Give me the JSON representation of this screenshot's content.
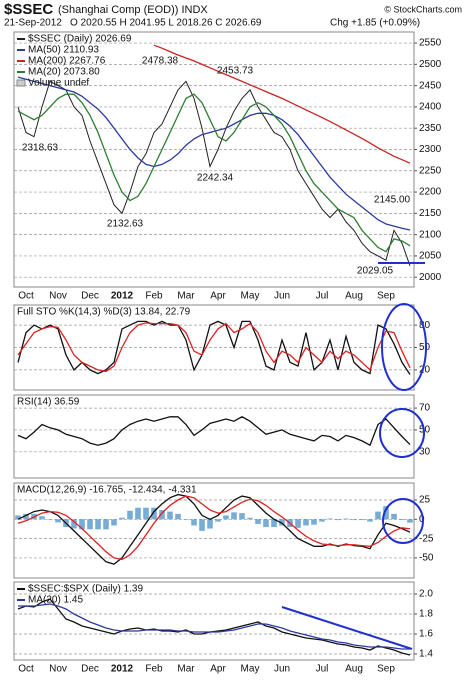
{
  "header": {
    "symbol": "$SSEC",
    "name": "(Shanghai Comp (EOD)) INDX",
    "date": "21-Sep-2012",
    "quote": "O 2020.55  H 2041.95  L 2018.26  C 2026.69",
    "change": "Chg +1.85 (+0.09%)",
    "credit": "© StockCharts.com"
  },
  "chart_data": [
    {
      "type": "line",
      "categories": [
        null,
        "Oct",
        null,
        null,
        null,
        "Nov",
        null,
        null,
        null,
        "Dec",
        null,
        null,
        null,
        "2012",
        null,
        null,
        null,
        "Feb",
        null,
        null,
        null,
        "Mar",
        null,
        null,
        null,
        "Apr",
        null,
        null,
        null,
        "May",
        null,
        null,
        null,
        "Jun",
        null,
        null,
        null,
        null,
        "Jul",
        null,
        null,
        null,
        "Aug",
        null,
        null,
        null,
        "Sep",
        null,
        null,
        null
      ],
      "series": [
        {
          "name": "$SSEC (Daily) 2026.69",
          "color": "#222222",
          "values": [
            2400,
            2340,
            2330,
            2400,
            2460,
            2450,
            2440,
            2400,
            2380,
            2320,
            2270,
            2220,
            2170,
            2150,
            2200,
            2260,
            2290,
            2340,
            2360,
            2400,
            2440,
            2460,
            2420,
            2350,
            2260,
            2300,
            2350,
            2390,
            2420,
            2440,
            2400,
            2370,
            2340,
            2330,
            2300,
            2250,
            2220,
            2190,
            2160,
            2140,
            2160,
            2130,
            2110,
            2080,
            2060,
            2050,
            2040,
            2110,
            2080,
            2026.69
          ]
        },
        {
          "name": "MA(50) 2110.93",
          "color": "#2b3a9e",
          "values": [
            2470,
            2465,
            2460,
            2455,
            2450,
            2445,
            2440,
            2435,
            2425,
            2410,
            2395,
            2375,
            2350,
            2325,
            2300,
            2280,
            2265,
            2260,
            2265,
            2275,
            2290,
            2310,
            2325,
            2335,
            2340,
            2345,
            2350,
            2360,
            2370,
            2380,
            2385,
            2385,
            2380,
            2370,
            2355,
            2335,
            2310,
            2285,
            2260,
            2235,
            2215,
            2195,
            2180,
            2165,
            2150,
            2135,
            2125,
            2120,
            2115,
            2110.93
          ]
        },
        {
          "name": "MA(200) 2267.76",
          "color": "#cc2222",
          "values": [
            null,
            null,
            null,
            null,
            null,
            null,
            null,
            null,
            null,
            null,
            null,
            null,
            null,
            null,
            null,
            null,
            null,
            2545,
            2538,
            2530,
            2522,
            2515,
            2508,
            2500,
            2492,
            2484,
            2476,
            2468,
            2460,
            2452,
            2444,
            2436,
            2428,
            2420,
            2411,
            2402,
            2393,
            2384,
            2375,
            2366,
            2356,
            2346,
            2336,
            2326,
            2315,
            2304,
            2294,
            2284,
            2276,
            2267.76
          ]
        },
        {
          "name": "MA(20) 2073.80",
          "color": "#2e7d32",
          "values": [
            2390,
            2380,
            2370,
            2380,
            2400,
            2420,
            2430,
            2430,
            2410,
            2380,
            2340,
            2290,
            2240,
            2200,
            2180,
            2190,
            2220,
            2260,
            2300,
            2340,
            2380,
            2420,
            2430,
            2410,
            2370,
            2330,
            2320,
            2340,
            2370,
            2400,
            2410,
            2400,
            2380,
            2360,
            2330,
            2290,
            2250,
            2220,
            2200,
            2180,
            2160,
            2150,
            2140,
            2110,
            2090,
            2070,
            2060,
            2090,
            2085,
            2073.8
          ]
        }
      ],
      "legend_note": "Volume undef",
      "annotations": [
        "2318.63",
        "2478.38",
        "2453.73",
        "2242.34",
        "2132.63",
        "2145.00",
        "2029.05"
      ],
      "ylim": [
        1977,
        2576
      ],
      "yticks": [
        2000,
        2050,
        2100,
        2150,
        2200,
        2250,
        2300,
        2350,
        2400,
        2450,
        2500,
        2550
      ],
      "grid": true
    },
    {
      "type": "line",
      "title": "Full STO %K(14,3) %D(3) 13.84, 22.79",
      "series": [
        {
          "color": "#111111",
          "values": [
            30,
            70,
            80,
            75,
            80,
            75,
            40,
            20,
            30,
            20,
            15,
            20,
            30,
            75,
            80,
            85,
            85,
            80,
            85,
            80,
            80,
            60,
            20,
            40,
            80,
            85,
            80,
            50,
            85,
            85,
            60,
            25,
            20,
            60,
            30,
            25,
            70,
            20,
            30,
            60,
            20,
            65,
            30,
            20,
            15,
            80,
            75,
            55,
            30,
            13.84
          ]
        },
        {
          "color": "#dd2222",
          "values": [
            40,
            55,
            70,
            75,
            78,
            77,
            60,
            40,
            30,
            25,
            20,
            18,
            25,
            50,
            70,
            80,
            83,
            82,
            82,
            82,
            80,
            70,
            45,
            40,
            60,
            75,
            82,
            70,
            75,
            82,
            70,
            45,
            30,
            45,
            40,
            30,
            50,
            40,
            30,
            45,
            35,
            45,
            40,
            30,
            20,
            50,
            72,
            70,
            45,
            22.79
          ]
        }
      ],
      "ylim": [
        -7,
        107
      ],
      "yticks": [
        20,
        50,
        80
      ],
      "grid": true
    },
    {
      "type": "line",
      "title": "RSI(14) 36.59",
      "series": [
        {
          "color": "#111111",
          "values": [
            45,
            42,
            48,
            55,
            52,
            50,
            46,
            44,
            42,
            38,
            36,
            38,
            42,
            50,
            55,
            58,
            60,
            58,
            60,
            62,
            62,
            55,
            45,
            50,
            56,
            58,
            60,
            58,
            62,
            58,
            52,
            46,
            48,
            50,
            46,
            44,
            42,
            40,
            45,
            44,
            40,
            45,
            43,
            40,
            36,
            55,
            60,
            52,
            44,
            36.59
          ]
        }
      ],
      "ylim": [
        6,
        82
      ],
      "yticks": [
        30,
        50,
        70
      ],
      "grid": true
    },
    {
      "type": "line",
      "title": "MACD(12,26,9) -16.765, -12.434, -4.331",
      "series": [
        {
          "color": "#4a90c8",
          "style": "bar",
          "values": [
            5,
            7,
            7,
            4,
            0,
            -4,
            -10,
            -12,
            -13,
            -13,
            -13,
            -13,
            -8,
            2,
            11,
            15,
            15,
            15,
            12,
            10,
            7,
            0,
            -8,
            -15,
            -12,
            -3,
            5,
            9,
            8,
            2,
            -6,
            -10,
            -10,
            -8,
            -10,
            -11,
            -8,
            -7,
            -3,
            1,
            -1,
            1,
            -1,
            -1,
            -3,
            10,
            17,
            7,
            -1,
            -4.331
          ]
        },
        {
          "color": "#111111",
          "values": [
            0,
            5,
            10,
            12,
            10,
            5,
            -5,
            -15,
            -25,
            -35,
            -45,
            -55,
            -58,
            -50,
            -35,
            -20,
            -5,
            10,
            20,
            28,
            32,
            30,
            20,
            5,
            0,
            5,
            15,
            25,
            30,
            28,
            18,
            8,
            0,
            -5,
            -15,
            -25,
            -30,
            -35,
            -35,
            -32,
            -35,
            -32,
            -34,
            -35,
            -38,
            -20,
            -5,
            -8,
            -12,
            -16.765
          ]
        },
        {
          "color": "#dd2222",
          "values": [
            -5,
            -2,
            3,
            8,
            10,
            9,
            5,
            -3,
            -12,
            -22,
            -32,
            -42,
            -50,
            -52,
            -46,
            -35,
            -20,
            -5,
            8,
            18,
            25,
            30,
            28,
            20,
            12,
            8,
            10,
            16,
            22,
            26,
            24,
            18,
            10,
            3,
            -5,
            -14,
            -22,
            -28,
            -32,
            -33,
            -34,
            -33,
            -33,
            -34,
            -35,
            -30,
            -22,
            -15,
            -11,
            -12.434
          ]
        }
      ],
      "ylim": [
        -76,
        47
      ],
      "yticks": [
        -50,
        -25,
        0,
        25
      ],
      "grid": true
    },
    {
      "type": "line",
      "categories": [
        null,
        "Oct",
        null,
        null,
        null,
        "Nov",
        null,
        null,
        null,
        "Dec",
        null,
        null,
        null,
        "2012",
        null,
        null,
        null,
        "Feb",
        null,
        null,
        null,
        "Mar",
        null,
        null,
        null,
        "Apr",
        null,
        null,
        null,
        "May",
        null,
        null,
        null,
        "Jun",
        null,
        null,
        null,
        null,
        "Jul",
        null,
        null,
        null,
        "Aug",
        null,
        null,
        null,
        "Sep",
        null,
        null,
        null
      ],
      "series": [
        {
          "name": "$SSEC:$SPX (Daily) 1.39",
          "color": "#111111",
          "values": [
            1.85,
            1.88,
            1.87,
            1.92,
            1.95,
            1.85,
            1.75,
            1.72,
            1.68,
            1.66,
            1.64,
            1.62,
            1.6,
            1.63,
            1.65,
            1.66,
            1.64,
            1.65,
            1.63,
            1.63,
            1.62,
            1.64,
            1.6,
            1.6,
            1.62,
            1.63,
            1.64,
            1.66,
            1.68,
            1.7,
            1.72,
            1.68,
            1.66,
            1.62,
            1.6,
            1.58,
            1.56,
            1.55,
            1.54,
            1.52,
            1.5,
            1.49,
            1.47,
            1.46,
            1.44,
            1.48,
            1.46,
            1.44,
            1.41,
            1.39
          ]
        },
        {
          "name": "MA(20) 1.45",
          "color": "#2b3a9e",
          "values": [
            1.88,
            1.88,
            1.88,
            1.89,
            1.9,
            1.88,
            1.85,
            1.8,
            1.76,
            1.72,
            1.69,
            1.66,
            1.64,
            1.63,
            1.63,
            1.63,
            1.64,
            1.64,
            1.64,
            1.64,
            1.63,
            1.63,
            1.62,
            1.62,
            1.62,
            1.62,
            1.63,
            1.64,
            1.66,
            1.68,
            1.7,
            1.7,
            1.68,
            1.66,
            1.63,
            1.61,
            1.59,
            1.57,
            1.55,
            1.54,
            1.52,
            1.51,
            1.49,
            1.48,
            1.47,
            1.47,
            1.47,
            1.46,
            1.45,
            1.45
          ]
        }
      ],
      "ylim": [
        1.34,
        2.12
      ],
      "yticks": [
        1.4,
        1.6,
        1.8,
        {
          "value": 2,
          "label": "2.0"
        }
      ],
      "grid": true
    }
  ]
}
